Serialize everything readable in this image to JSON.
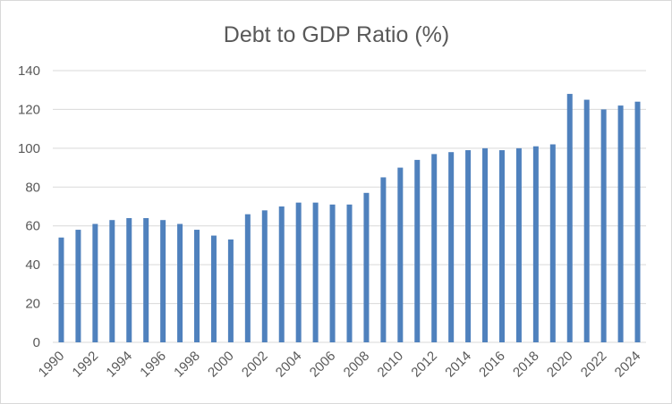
{
  "chart_data": {
    "type": "bar",
    "title": "Debt to GDP Ratio (%)",
    "xlabel": "",
    "ylabel": "",
    "ylim": [
      0,
      140
    ],
    "yticks": [
      0,
      20,
      40,
      60,
      80,
      100,
      120,
      140
    ],
    "categories": [
      "1990",
      "1991",
      "1992",
      "1993",
      "1994",
      "1995",
      "1996",
      "1997",
      "1998",
      "1999",
      "2000",
      "2001",
      "2002",
      "2003",
      "2004",
      "2005",
      "2006",
      "2007",
      "2008",
      "2009",
      "2010",
      "2011",
      "2012",
      "2013",
      "2014",
      "2015",
      "2016",
      "2017",
      "2018",
      "2019",
      "2020",
      "2021",
      "2022",
      "2023",
      "2024"
    ],
    "x_tick_labels": [
      "1990",
      "1992",
      "1994",
      "1996",
      "1998",
      "2000",
      "2002",
      "2004",
      "2006",
      "2008",
      "2010",
      "2012",
      "2014",
      "2016",
      "2018",
      "2020",
      "2022",
      "2024"
    ],
    "values": [
      54,
      58,
      61,
      63,
      64,
      64,
      63,
      61,
      58,
      55,
      53,
      66,
      68,
      70,
      72,
      72,
      71,
      71,
      77,
      85,
      90,
      94,
      97,
      98,
      99,
      100,
      99,
      100,
      101,
      102,
      128,
      125,
      120,
      122,
      124
    ],
    "bar_color": "#4f81bd",
    "gridline_color": "#d9d9d9",
    "grid": true,
    "legend": "none"
  }
}
